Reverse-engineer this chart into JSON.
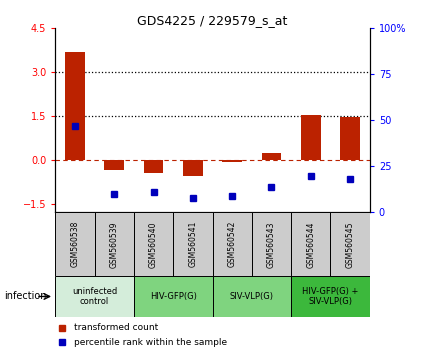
{
  "title": "GDS4225 / 229579_s_at",
  "samples": [
    "GSM560538",
    "GSM560539",
    "GSM560540",
    "GSM560541",
    "GSM560542",
    "GSM560543",
    "GSM560544",
    "GSM560545"
  ],
  "transformed_count": [
    3.7,
    -0.35,
    -0.45,
    -0.55,
    -0.08,
    0.25,
    1.55,
    1.45
  ],
  "percentile_rank": [
    47,
    10,
    11,
    8,
    9,
    14,
    20,
    18
  ],
  "ylim_left": [
    -1.8,
    4.5
  ],
  "ylim_right": [
    0,
    100
  ],
  "yticks_left": [
    -1.5,
    0,
    1.5,
    3,
    4.5
  ],
  "yticks_right": [
    0,
    25,
    50,
    75,
    100
  ],
  "hlines_dotted": [
    1.5,
    3.0
  ],
  "hline_dashed": 0,
  "groups": [
    {
      "label": "uninfected\ncontrol",
      "start": 0,
      "end": 2,
      "color": "#d4edda"
    },
    {
      "label": "HIV-GFP(G)",
      "start": 2,
      "end": 4,
      "color": "#7fd47f"
    },
    {
      "label": "SIV-VLP(G)",
      "start": 4,
      "end": 6,
      "color": "#7fd47f"
    },
    {
      "label": "HIV-GFP(G) +\nSIV-VLP(G)",
      "start": 6,
      "end": 8,
      "color": "#3cb83c"
    }
  ],
  "bar_color_red": "#bb2200",
  "dot_color_blue": "#0000bb",
  "infection_label": "infection",
  "legend_red_label": "transformed count",
  "legend_blue_label": "percentile rank within the sample",
  "bar_width": 0.5,
  "sample_bg": "#cccccc"
}
